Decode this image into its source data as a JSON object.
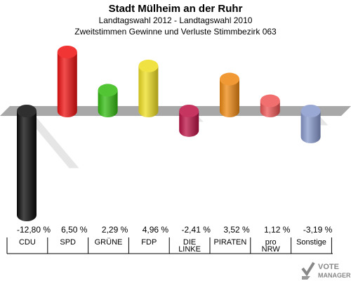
{
  "chart_data": {
    "type": "bar",
    "title": "Stadt Mülheim an der Ruhr",
    "subtitle": "Landtagswahl 2012 - Landtagswahl 2010",
    "subtitle2": "Zweitstimmen Gewinne und Verluste Stimmbezirk 063",
    "categories": [
      "CDU",
      "SPD",
      "GRÜNE",
      "FDP",
      "DIE LINKE",
      "PIRATEN",
      "pro NRW",
      "Sonstige"
    ],
    "category_lines": [
      [
        "CDU"
      ],
      [
        "SPD"
      ],
      [
        "GRÜNE"
      ],
      [
        "FDP"
      ],
      [
        "DIE",
        "LINKE"
      ],
      [
        "PIRATEN"
      ],
      [
        "pro",
        "NRW"
      ],
      [
        "Sonstige"
      ]
    ],
    "values": [
      -12.8,
      6.5,
      2.29,
      4.96,
      -2.41,
      3.52,
      1.12,
      -3.19
    ],
    "value_labels": [
      "-12,80 %",
      "6,50 %",
      "2,29 %",
      "4,96 %",
      "-2,41 %",
      "3,52 %",
      "1,12 %",
      "-3,19 %"
    ],
    "colors": [
      "#0a0a0a",
      "#ee1111",
      "#33bb11",
      "#eedd22",
      "#bb1144",
      "#ee8811",
      "#ee5555",
      "#8899cc"
    ],
    "ylim": [
      -12.8,
      6.5
    ],
    "grid": false,
    "legend": "none"
  },
  "watermark": {
    "text_top": "VOTE",
    "text_bottom": "MANAGER"
  }
}
